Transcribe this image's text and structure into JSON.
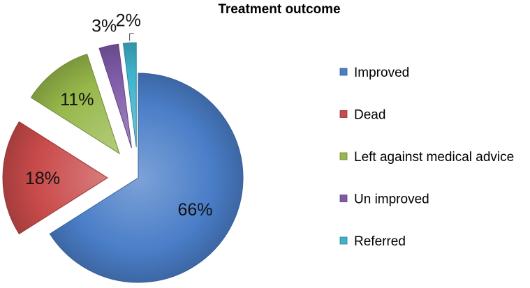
{
  "chart_data": {
    "type": "pie",
    "title": "Treatment outcome",
    "legend_position": "right",
    "slices": [
      {
        "label": "Improved",
        "value": 66,
        "value_label": "66%",
        "color": "#4A7EC8"
      },
      {
        "label": "Dead",
        "value": 18,
        "value_label": "18%",
        "color": "#C94A4A"
      },
      {
        "label": "Left against medical advice",
        "value": 11,
        "value_label": "11%",
        "color": "#97B84A"
      },
      {
        "label": "Un improved",
        "value": 3,
        "value_label": "3%",
        "color": "#7F5AA8"
      },
      {
        "label": "Referred",
        "value": 2,
        "value_label": "2%",
        "color": "#3FB3CC"
      }
    ],
    "exploded": true,
    "style": "3D-shaded"
  }
}
